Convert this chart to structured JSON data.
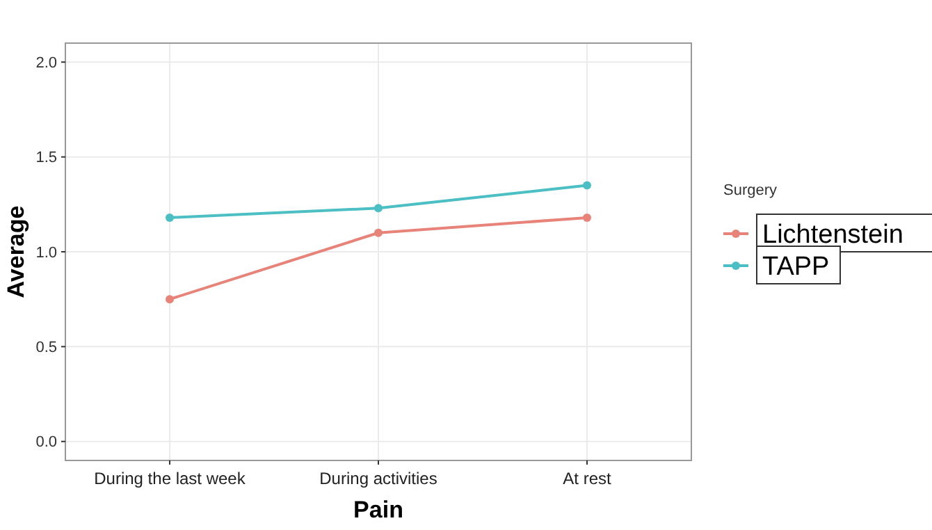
{
  "chart_data": {
    "type": "line",
    "xlabel": "Pain",
    "ylabel": "Average",
    "legend_title": "Surgery",
    "categories": [
      "During the last week",
      "During activities",
      "At rest"
    ],
    "series": [
      {
        "name": "Lichtenstein",
        "color": "#e8837a",
        "values": [
          0.75,
          1.1,
          1.18
        ]
      },
      {
        "name": "TAPP",
        "color": "#4bbfc3",
        "values": [
          1.18,
          1.23,
          1.35
        ]
      }
    ],
    "ylim": [
      -0.1,
      2.1
    ],
    "yticks": [
      {
        "value": 0,
        "label": "0.0"
      },
      {
        "value": 0.5,
        "label": "0.5"
      },
      {
        "value": 1,
        "label": "1.0"
      },
      {
        "value": 1.5,
        "label": "1.5"
      },
      {
        "value": 2,
        "label": "2.0"
      }
    ],
    "grid": true,
    "legend": "right",
    "marker": "circle",
    "line_style": "solid"
  }
}
